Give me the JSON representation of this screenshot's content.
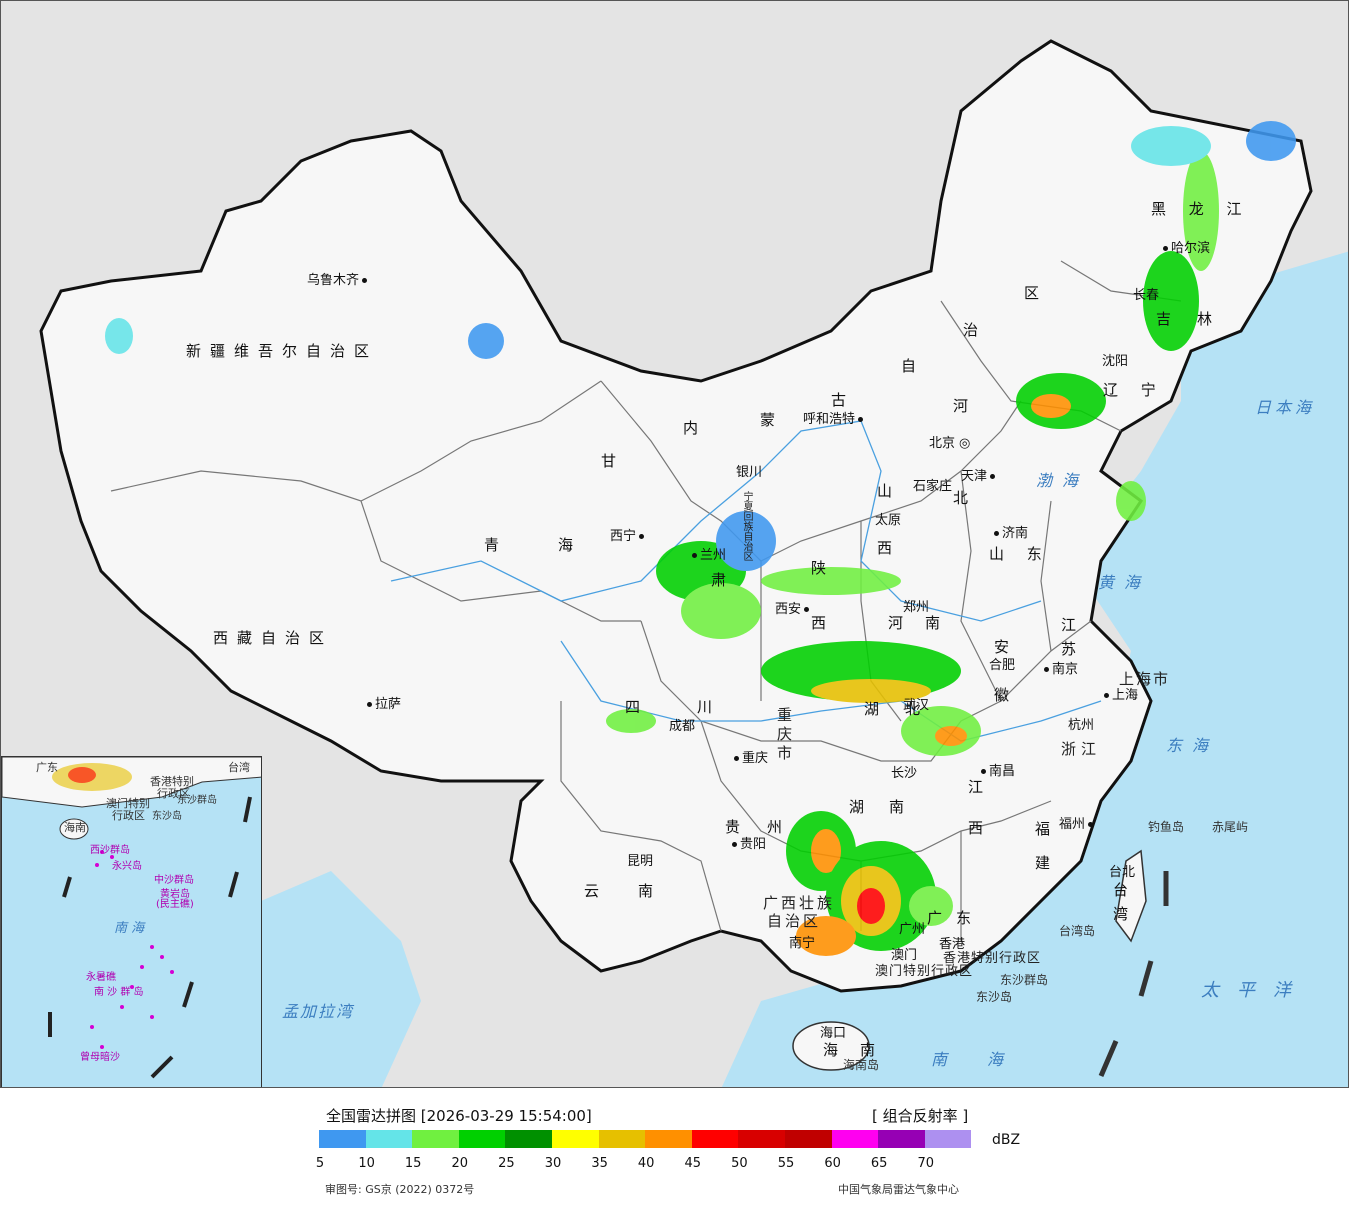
{
  "map": {
    "provinces": [
      {
        "id": "xinjiang",
        "text": "新疆维吾尔自治区"
      },
      {
        "id": "xizang",
        "text": "西藏自治区"
      },
      {
        "id": "qinghai-1",
        "text": "青"
      },
      {
        "id": "qinghai-2",
        "text": "海"
      },
      {
        "id": "gansu-1",
        "text": "甘"
      },
      {
        "id": "gansu-2",
        "text": "肃"
      },
      {
        "id": "neimeng-1",
        "text": "内"
      },
      {
        "id": "neimeng-2",
        "text": "蒙"
      },
      {
        "id": "neimeng-3",
        "text": "古"
      },
      {
        "id": "neimeng-4",
        "text": "自"
      },
      {
        "id": "neimeng-5",
        "text": "治"
      },
      {
        "id": "neimeng-6",
        "text": "区"
      },
      {
        "id": "heilongjiang",
        "text": "黑 龙 江"
      },
      {
        "id": "jilin-1",
        "text": "吉"
      },
      {
        "id": "jilin-2",
        "text": "林"
      },
      {
        "id": "liaoning",
        "text": "辽 宁"
      },
      {
        "id": "hebei-1",
        "text": "河"
      },
      {
        "id": "hebei-2",
        "text": "北"
      },
      {
        "id": "shanxi-1",
        "text": "山"
      },
      {
        "id": "shanxi-2",
        "text": "西"
      },
      {
        "id": "shandong",
        "text": "山 东"
      },
      {
        "id": "shaanxi-1",
        "text": "陕"
      },
      {
        "id": "shaanxi-2",
        "text": "西"
      },
      {
        "id": "henan-1",
        "text": "河"
      },
      {
        "id": "henan-2",
        "text": "南"
      },
      {
        "id": "jiangsu-1",
        "text": "江"
      },
      {
        "id": "jiangsu-2",
        "text": "苏"
      },
      {
        "id": "anhui-1",
        "text": "安"
      },
      {
        "id": "anhui-2",
        "text": "徽"
      },
      {
        "id": "sichuan-1",
        "text": "四"
      },
      {
        "id": "sichuan-2",
        "text": "川"
      },
      {
        "id": "chongqing",
        "text": "重庆市"
      },
      {
        "id": "hubei-1",
        "text": "湖"
      },
      {
        "id": "hubei-2",
        "text": "北"
      },
      {
        "id": "zhejiang",
        "text": "浙江"
      },
      {
        "id": "hunan-1",
        "text": "湖"
      },
      {
        "id": "hunan-2",
        "text": "南"
      },
      {
        "id": "jiangxi-1",
        "text": "江"
      },
      {
        "id": "jiangxi-2",
        "text": "西"
      },
      {
        "id": "guizhou-1",
        "text": "贵"
      },
      {
        "id": "guizhou-2",
        "text": "州"
      },
      {
        "id": "fujian-1",
        "text": "福"
      },
      {
        "id": "fujian-2",
        "text": "建"
      },
      {
        "id": "yunnan-1",
        "text": "云"
      },
      {
        "id": "yunnan-2",
        "text": "南"
      },
      {
        "id": "guangxi-1",
        "text": "广西壮族"
      },
      {
        "id": "guangxi-2",
        "text": "自治区"
      },
      {
        "id": "guangdong-1",
        "text": "广"
      },
      {
        "id": "guangdong-2",
        "text": "东"
      },
      {
        "id": "taiwan-1",
        "text": "台"
      },
      {
        "id": "taiwan-2",
        "text": "湾"
      },
      {
        "id": "hainan-1",
        "text": "海"
      },
      {
        "id": "hainan-2",
        "text": "南"
      },
      {
        "id": "shanghai",
        "text": "上海市"
      },
      {
        "id": "ningxia",
        "text": "宁夏回族自治区"
      },
      {
        "id": "hk-sar",
        "text": "香港特别行政区"
      },
      {
        "id": "macau-sar",
        "text": "澳门特别行政区"
      }
    ],
    "cities": [
      {
        "id": "urumqi",
        "text": "乌鲁木齐"
      },
      {
        "id": "lhasa",
        "text": "拉萨"
      },
      {
        "id": "xining",
        "text": "西宁"
      },
      {
        "id": "lanzhou",
        "text": "兰州"
      },
      {
        "id": "yinchuan",
        "text": "银川"
      },
      {
        "id": "hohhot",
        "text": "呼和浩特"
      },
      {
        "id": "beijing",
        "text": "北京"
      },
      {
        "id": "tianjin",
        "text": "天津"
      },
      {
        "id": "shijiazhuang",
        "text": "石家庄"
      },
      {
        "id": "taiyuan",
        "text": "太原"
      },
      {
        "id": "jinan",
        "text": "济南"
      },
      {
        "id": "xian",
        "text": "西安"
      },
      {
        "id": "zhengzhou",
        "text": "郑州"
      },
      {
        "id": "hefei",
        "text": "合肥"
      },
      {
        "id": "nanjing",
        "text": "南京"
      },
      {
        "id": "shanghai-c",
        "text": "上海"
      },
      {
        "id": "hangzhou",
        "text": "杭州"
      },
      {
        "id": "wuhan",
        "text": "武汉"
      },
      {
        "id": "chengdu",
        "text": "成都"
      },
      {
        "id": "chongqing-c",
        "text": "重庆"
      },
      {
        "id": "changsha",
        "text": "长沙"
      },
      {
        "id": "nanchang",
        "text": "南昌"
      },
      {
        "id": "fuzhou",
        "text": "福州"
      },
      {
        "id": "guiyang",
        "text": "贵阳"
      },
      {
        "id": "kunming",
        "text": "昆明"
      },
      {
        "id": "nanning",
        "text": "南宁"
      },
      {
        "id": "guangzhou",
        "text": "广州"
      },
      {
        "id": "hongkong",
        "text": "香港"
      },
      {
        "id": "macau",
        "text": "澳门"
      },
      {
        "id": "haikou",
        "text": "海口"
      },
      {
        "id": "taipei",
        "text": "台北"
      },
      {
        "id": "harbin",
        "text": "哈尔滨"
      },
      {
        "id": "changchun",
        "text": "长春"
      },
      {
        "id": "shenyang",
        "text": "沈阳"
      }
    ],
    "seas": [
      {
        "id": "bohai",
        "text": "渤海"
      },
      {
        "id": "huanghai",
        "text": "黄海"
      },
      {
        "id": "donghai",
        "text": "东海"
      },
      {
        "id": "nanhai",
        "text": "南海"
      },
      {
        "id": "japan-sea",
        "text": "日本海"
      },
      {
        "id": "pacific",
        "text": "太平洋"
      },
      {
        "id": "bengal",
        "text": "孟加拉湾"
      }
    ],
    "islands": [
      {
        "id": "diaoyu",
        "text": "钓鱼岛"
      },
      {
        "id": "chiwei",
        "text": "赤尾屿"
      },
      {
        "id": "taiwan-isl",
        "text": "台湾岛"
      },
      {
        "id": "dongsha-q",
        "text": "东沙群岛"
      },
      {
        "id": "dongsha-d",
        "text": "东沙岛"
      },
      {
        "id": "hainan-isl",
        "text": "海南岛"
      }
    ]
  },
  "inset": {
    "labels": [
      {
        "id": "i-hk",
        "text": "香港特别"
      },
      {
        "id": "i-hk2",
        "text": "行政区"
      },
      {
        "id": "i-mo",
        "text": "澳门特别"
      },
      {
        "id": "i-mo2",
        "text": "行政区"
      },
      {
        "id": "i-dongsha",
        "text": "东沙群岛"
      },
      {
        "id": "i-dongsha2",
        "text": "东沙岛"
      },
      {
        "id": "i-taiwan",
        "text": "台湾"
      },
      {
        "id": "i-hainan",
        "text": "海南"
      },
      {
        "id": "i-xisha",
        "text": "西沙群岛"
      },
      {
        "id": "i-yongxing",
        "text": "永兴岛"
      },
      {
        "id": "i-zhongsha",
        "text": "中沙群岛"
      },
      {
        "id": "i-huangyan",
        "text": "黄岩岛"
      },
      {
        "id": "i-huangyan2",
        "text": "(民主礁)"
      },
      {
        "id": "i-nanhai",
        "text": "南  海"
      },
      {
        "id": "i-yongshu",
        "text": "永暑礁"
      },
      {
        "id": "i-nansha",
        "text": "南 沙 群 岛"
      },
      {
        "id": "i-zengmu",
        "text": "曾母暗沙"
      },
      {
        "id": "i-guangdong",
        "text": "广东"
      }
    ]
  },
  "footer": {
    "title": "全国雷达拼图 [2026-03-29 15:54:00]",
    "product": "[ 组合反射率 ]",
    "unit": "dBZ",
    "scale_colors": [
      "#3f98f0",
      "#64e4e8",
      "#70f040",
      "#00d000",
      "#009000",
      "#ffff00",
      "#e6c000",
      "#ff9000",
      "#ff0000",
      "#d80000",
      "#c00000",
      "#ff00f0",
      "#9600b4",
      "#ad90f0"
    ],
    "scale_ticks": [
      "5",
      "10",
      "15",
      "20",
      "25",
      "30",
      "35",
      "40",
      "45",
      "50",
      "55",
      "60",
      "65",
      "70"
    ],
    "review_no": "审图号: GS京 (2022) 0372号",
    "source": "中国气象局雷达气象中心"
  }
}
